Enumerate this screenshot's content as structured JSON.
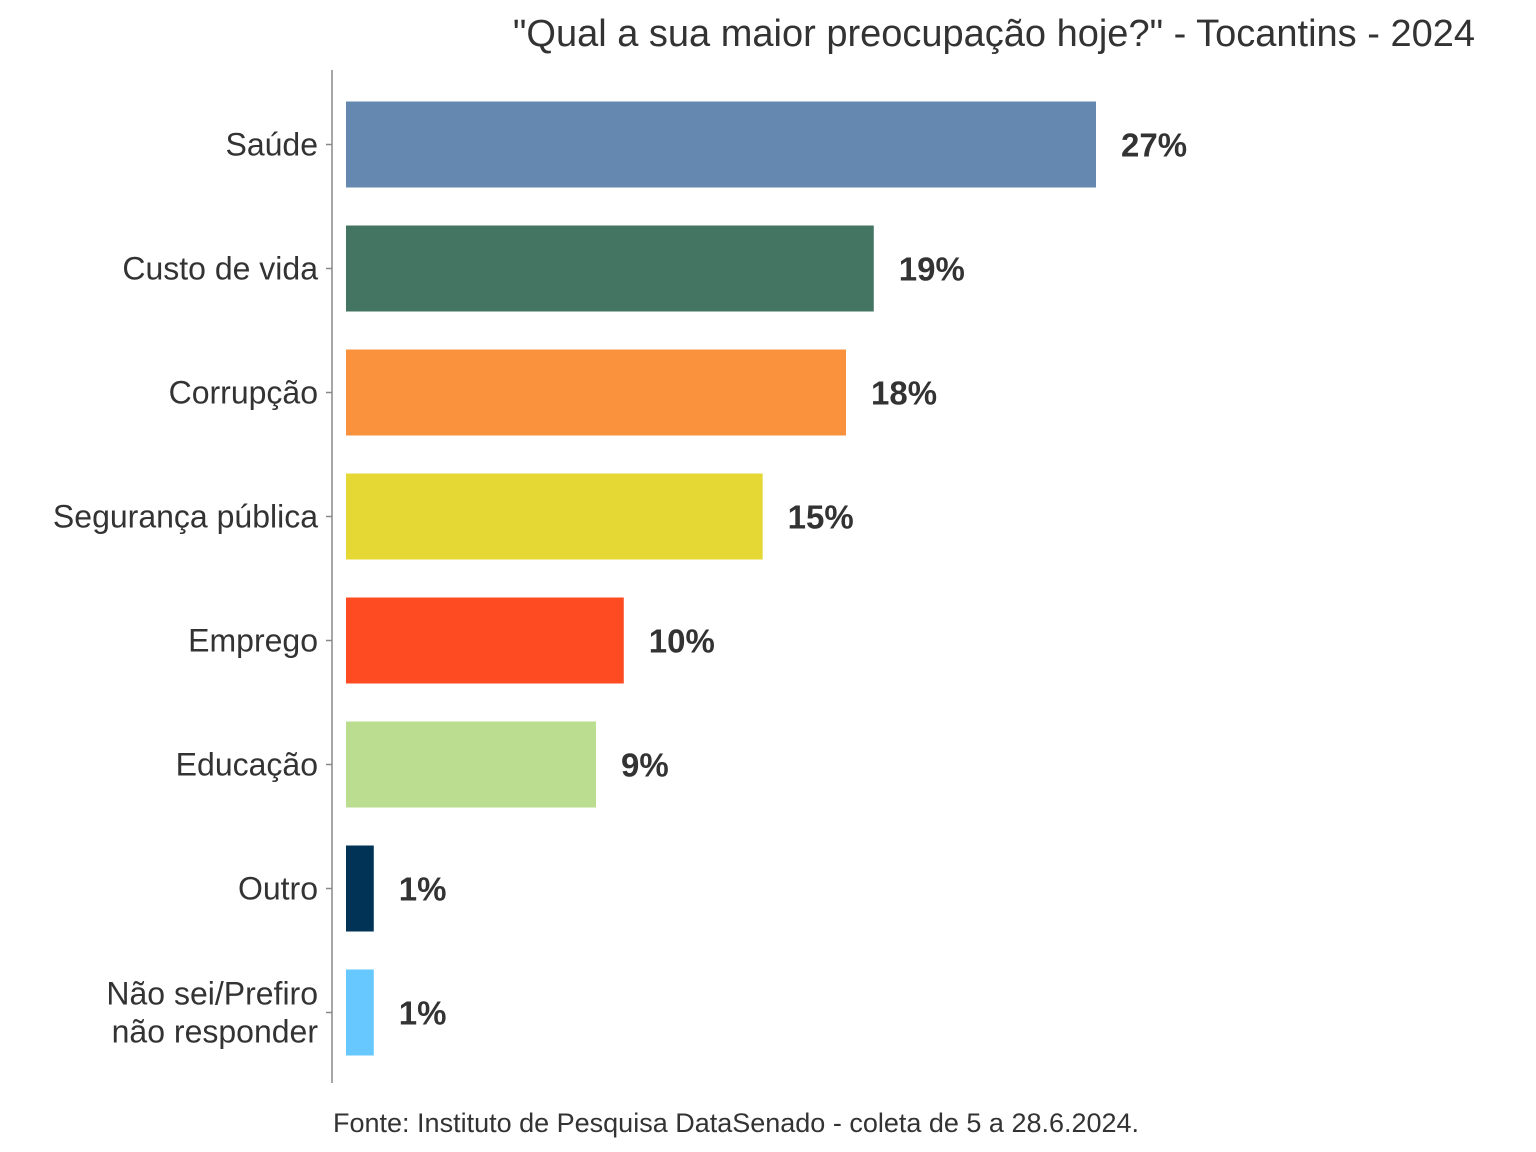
{
  "chart_data": {
    "type": "bar",
    "orientation": "horizontal",
    "title": "\"Qual a sua maior preocupação hoje?\" - Tocantins - 2024",
    "xlabel": "",
    "ylabel": "",
    "categories": [
      "Saúde",
      "Custo de vida",
      "Corrupção",
      "Segurança pública",
      "Emprego",
      "Educação",
      "Outro",
      "Não sei/Prefiro\nnão responder"
    ],
    "values": [
      27,
      19,
      18,
      15,
      10,
      9,
      1,
      1
    ],
    "value_labels": [
      "27%",
      "19%",
      "18%",
      "15%",
      "10%",
      "9%",
      "1%",
      "1%"
    ],
    "colors": [
      "#6488b0",
      "#447563",
      "#fa913d",
      "#e5d835",
      "#ff4b21",
      "#badd8f",
      "#003356",
      "#66c8ff"
    ],
    "xlim": [
      0,
      30
    ],
    "grid": false,
    "legend": "none"
  },
  "source_note": "Fonte: Instituto de Pesquisa DataSenado - coleta de 5 a 28.6.2024."
}
